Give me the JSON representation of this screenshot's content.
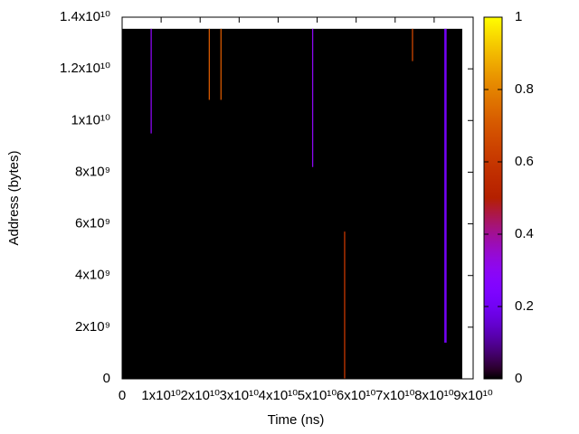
{
  "chart_data": {
    "type": "heatmap",
    "x_label": "Time (ns)",
    "y_label": "Address (bytes)",
    "xlim": [
      0,
      90000000000
    ],
    "xticks": [
      0,
      {
        "value": 10000000000,
        "label": "1x10¹⁰"
      },
      {
        "value": 20000000000,
        "label": "2x10¹⁰"
      },
      {
        "value": 30000000000,
        "label": "3x10¹⁰"
      },
      {
        "value": 40000000000,
        "label": "4x10¹⁰"
      },
      {
        "value": 50000000000,
        "label": "5x10¹⁰"
      },
      {
        "value": 60000000000,
        "label": "6x10¹⁰"
      },
      {
        "value": 70000000000,
        "label": "7x10¹⁰"
      },
      {
        "value": 80000000000,
        "label": "8x10¹⁰"
      },
      {
        "value": 90000000000,
        "label": "9x10¹⁰"
      }
    ],
    "ylim": [
      0,
      14000000000
    ],
    "yticks": [
      0,
      {
        "value": 2000000000,
        "label": "2x10⁹"
      },
      {
        "value": 4000000000,
        "label": "4x10⁹"
      },
      {
        "value": 6000000000,
        "label": "6x10⁹"
      },
      {
        "value": 8000000000,
        "label": "8x10⁹"
      },
      {
        "value": 10000000000,
        "label": "1x10¹⁰"
      },
      {
        "value": 12000000000,
        "label": "1.2x10¹⁰"
      },
      {
        "value": 14000000000,
        "label": "1.4x10¹⁰"
      }
    ],
    "zlim": [
      0,
      1
    ],
    "zticks": [
      0,
      0.2,
      0.4,
      0.6,
      0.8,
      1
    ],
    "cells": [
      {
        "x0": 0,
        "x1": 87200000000,
        "y0": 0,
        "y1": 13550000000,
        "value": 0
      },
      {
        "x0": 7300000000,
        "x1": 7600000000,
        "y0": 9500000000,
        "y1": 13550000000,
        "value": 0.3
      },
      {
        "x0": 22200000000,
        "x1": 22500000000,
        "y0": 10800000000,
        "y1": 13550000000,
        "value": 0.7
      },
      {
        "x0": 25200000000,
        "x1": 25500000000,
        "y0": 10800000000,
        "y1": 13550000000,
        "value": 0.7
      },
      {
        "x0": 48700000000,
        "x1": 49000000000,
        "y0": 8200000000,
        "y1": 13550000000,
        "value": 0.3
      },
      {
        "x0": 56900000000,
        "x1": 57200000000,
        "y0": 0,
        "y1": 5700000000,
        "value": 0.6
      },
      {
        "x0": 74300000000,
        "x1": 74600000000,
        "y0": 12300000000,
        "y1": 13550000000,
        "value": 0.65
      },
      {
        "x0": 82600000000,
        "x1": 83200000000,
        "y0": 1400000000,
        "y1": 13550000000,
        "value": 0.2
      }
    ]
  }
}
